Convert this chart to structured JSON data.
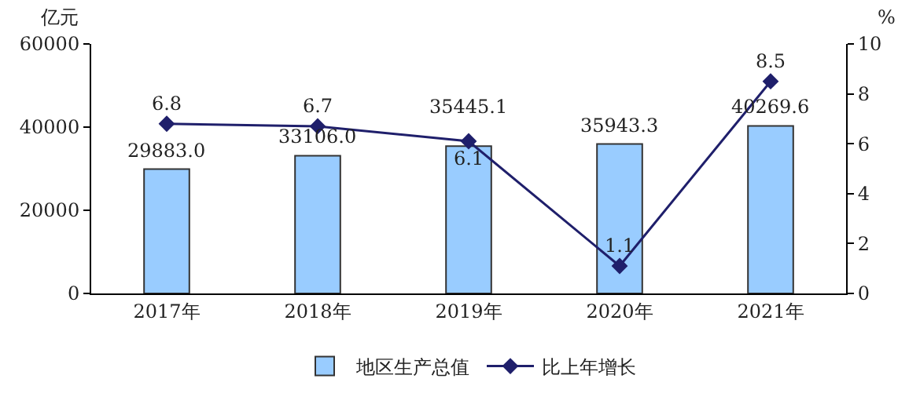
{
  "chart_data": {
    "type": "bar",
    "categories": [
      "2017年",
      "2018年",
      "2019年",
      "2020年",
      "2021年"
    ],
    "ylabel": "亿元",
    "y2label": "%",
    "ylim": [
      0,
      60000
    ],
    "yticks": [
      0,
      20000,
      40000,
      60000
    ],
    "y2lim": [
      0,
      10
    ],
    "y2ticks": [
      0,
      2,
      4,
      6,
      8,
      10
    ],
    "series": [
      {
        "name": "地区生产总值",
        "color": "#99ccff",
        "values": [
          29883.0,
          33106.0,
          35445.1,
          35943.3,
          40269.6
        ],
        "value_labels": [
          "29883.0",
          "33106.0",
          "35445.1",
          "35943.3",
          "40269.6"
        ]
      },
      {
        "name": "比上年增长",
        "type": "line",
        "axis": "y2",
        "color": "#1f1f6b",
        "marker": "diamond",
        "values": [
          6.8,
          6.7,
          6.1,
          1.1,
          8.5
        ],
        "value_labels": [
          "6.8",
          "6.7",
          "6.1",
          "1.1",
          "8.5"
        ]
      }
    ],
    "legend": "bottom",
    "grid": false
  }
}
